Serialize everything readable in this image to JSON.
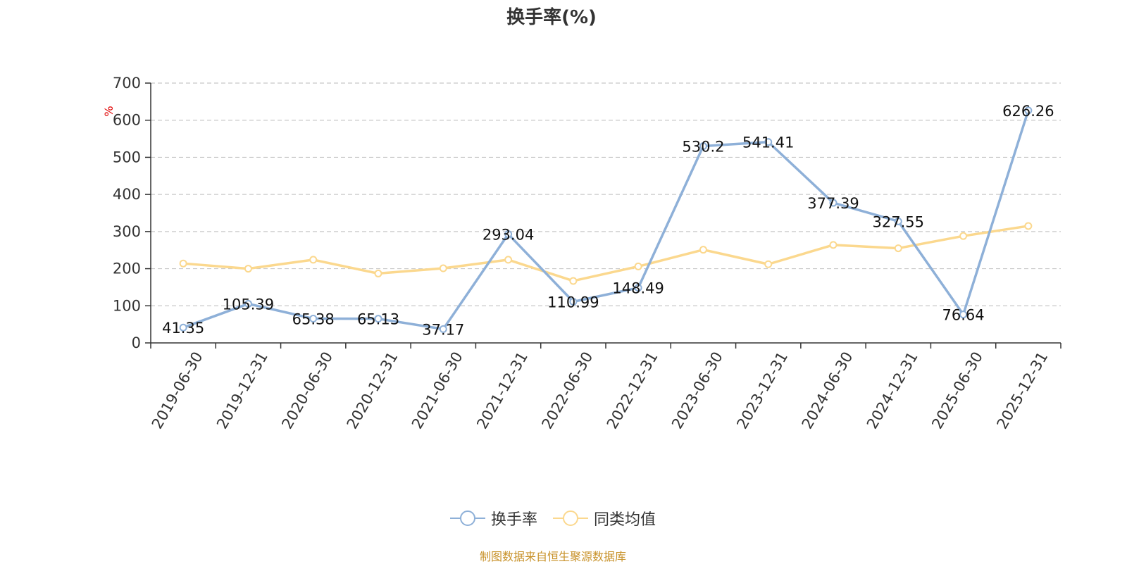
{
  "chart_data": {
    "type": "line",
    "title": "换手率(%)",
    "ylabel": "%",
    "ylim": [
      0,
      700
    ],
    "yticks": [
      0,
      100,
      200,
      300,
      400,
      500,
      600,
      700
    ],
    "grid": true,
    "legend_position": "bottom",
    "categories": [
      "2019-06-30",
      "2019-12-31",
      "2020-06-30",
      "2020-12-31",
      "2021-06-30",
      "2021-12-31",
      "2022-06-30",
      "2022-12-31",
      "2023-06-30",
      "2023-12-31",
      "2024-06-30",
      "2024-12-31",
      "2025-06-30",
      "2025-12-31"
    ],
    "series": [
      {
        "name": "换手率",
        "color": "#8eb0d8",
        "labels_shown": true,
        "values": [
          41.35,
          105.39,
          65.38,
          65.13,
          37.17,
          293.04,
          110.99,
          148.49,
          530.2,
          541.41,
          377.39,
          327.55,
          76.64,
          626.26
        ]
      },
      {
        "name": "同类均值",
        "color": "#fbd88e",
        "labels_shown": false,
        "values": [
          214,
          200,
          224,
          187,
          201,
          224,
          167,
          206,
          251,
          212,
          264,
          255,
          288,
          315
        ]
      }
    ]
  },
  "footer": {
    "source": "制图数据来自恒生聚源数据库"
  },
  "colors": {
    "source_text": "#c8922a",
    "unit_label": "#e00000"
  }
}
